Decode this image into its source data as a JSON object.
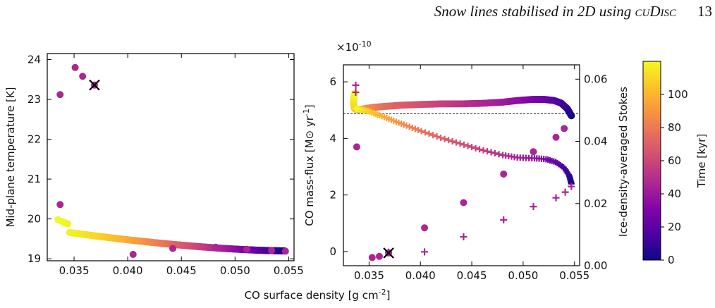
{
  "header": {
    "running_title": "Snow lines stabilised in 2D using cuDisc",
    "page_number": "13"
  },
  "shared_xlabel": "CO surface density [g cm^-2]",
  "colorbar": {
    "label": "Time [kyr]",
    "ticks": [
      0,
      20,
      40,
      60,
      80,
      100
    ],
    "range": [
      0,
      120
    ],
    "colormap": "plasma"
  },
  "chart_data": [
    {
      "type": "scatter",
      "panel": "left",
      "xlabel": "CO surface density [g cm^-2]",
      "ylabel": "Mid-plane temperature [K]",
      "xlim": [
        0.0325,
        0.0555
      ],
      "ylim": [
        18.95,
        24.15
      ],
      "xticks": [
        0.035,
        0.04,
        0.045,
        0.05,
        0.055
      ],
      "yticks": [
        19,
        20,
        21,
        22,
        23,
        24
      ],
      "grid": false,
      "series": [
        {
          "marker": "dot",
          "points": [
            {
              "x": 0.0337,
              "y": 23.12,
              "t": 46
            },
            {
              "x": 0.0351,
              "y": 23.8,
              "t": 46
            },
            {
              "x": 0.0358,
              "y": 23.58,
              "t": 46
            },
            {
              "x": 0.0337,
              "y": 20.36,
              "t": 46
            },
            {
              "x": 0.0405,
              "y": 19.11,
              "t": 46
            },
            {
              "x": 0.0442,
              "y": 19.26,
              "t": 46
            },
            {
              "x": 0.0482,
              "y": 19.29,
              "t": 46
            },
            {
              "x": 0.0511,
              "y": 19.24,
              "t": 46
            },
            {
              "x": 0.0534,
              "y": 19.21,
              "t": 46
            },
            {
              "x": 0.0547,
              "y": 19.19,
              "t": 46
            }
          ]
        },
        {
          "marker": "cross",
          "points": [
            {
              "x": 0.0369,
              "y": 23.36,
              "t": 46
            }
          ]
        },
        {
          "marker": "dot-track",
          "t_range": [
            0,
            120
          ],
          "x_start": 0.0335,
          "x_end": 0.0546,
          "y_start": 19.98,
          "y_end": 19.2
        }
      ]
    },
    {
      "type": "scatter",
      "panel": "right",
      "xlabel": "CO surface density [g cm^-2]",
      "ylabel": "CO mass-flux [M⊙ yr^-1]",
      "y2label": "Ice-density-averaged Stokes",
      "y_multiplier": "×10^-10",
      "xlim": [
        0.0325,
        0.0555
      ],
      "ylim": [
        -0.5,
        6.6
      ],
      "y2lim": [
        0.0,
        0.0646
      ],
      "xticks": [
        0.035,
        0.04,
        0.045,
        0.05,
        0.055
      ],
      "yticks": [
        0,
        2,
        4,
        6
      ],
      "y2ticks": [
        0.0,
        0.02,
        0.04,
        0.06
      ],
      "hline_y": 4.87,
      "grid": false,
      "series": [
        {
          "marker": "dot",
          "axis": "left",
          "points": [
            {
              "x": 0.0338,
              "y": 3.7,
              "t": 46
            },
            {
              "x": 0.0353,
              "y": -0.21,
              "t": 46
            },
            {
              "x": 0.036,
              "y": -0.17,
              "t": 46
            },
            {
              "x": 0.0404,
              "y": 0.84,
              "t": 46
            },
            {
              "x": 0.0442,
              "y": 1.73,
              "t": 46
            },
            {
              "x": 0.0481,
              "y": 2.74,
              "t": 46
            },
            {
              "x": 0.051,
              "y": 3.53,
              "t": 46
            },
            {
              "x": 0.0532,
              "y": 4.04,
              "t": 46
            },
            {
              "x": 0.054,
              "y": 4.35,
              "t": 46
            }
          ]
        },
        {
          "marker": "plus",
          "axis": "left",
          "points": [
            {
              "x": 0.0337,
              "y": 5.88,
              "t": 46
            },
            {
              "x": 0.0337,
              "y": 5.63,
              "t": 46
            },
            {
              "x": 0.0369,
              "y": -0.02,
              "t": 46
            },
            {
              "x": 0.0404,
              "y": -0.01,
              "t": 46
            },
            {
              "x": 0.0442,
              "y": 0.52,
              "t": 46
            },
            {
              "x": 0.0481,
              "y": 1.12,
              "t": 46
            },
            {
              "x": 0.051,
              "y": 1.59,
              "t": 46
            },
            {
              "x": 0.0532,
              "y": 1.9,
              "t": 46
            },
            {
              "x": 0.0541,
              "y": 2.1,
              "t": 46
            },
            {
              "x": 0.0547,
              "y": 2.3,
              "t": 46
            }
          ]
        },
        {
          "marker": "cross",
          "axis": "left",
          "points": [
            {
              "x": 0.0369,
              "y": -0.05,
              "t": 46
            }
          ]
        },
        {
          "marker": "dot-track",
          "axis": "left",
          "t_range": [
            0,
            120
          ],
          "path": [
            [
              0.0547,
              4.8
            ],
            [
              0.0543,
              5.05
            ],
            [
              0.0537,
              5.25
            ],
            [
              0.053,
              5.34
            ],
            [
              0.052,
              5.38
            ],
            [
              0.051,
              5.38
            ],
            [
              0.0495,
              5.34
            ],
            [
              0.048,
              5.28
            ],
            [
              0.046,
              5.24
            ],
            [
              0.044,
              5.22
            ],
            [
              0.042,
              5.22
            ],
            [
              0.04,
              5.2
            ],
            [
              0.038,
              5.17
            ],
            [
              0.0365,
              5.13
            ],
            [
              0.0355,
              5.1
            ],
            [
              0.0347,
              5.06
            ],
            [
              0.0343,
              5.03
            ],
            [
              0.0339,
              5.02
            ],
            [
              0.0336,
              5.05
            ],
            [
              0.0335,
              5.18
            ],
            [
              0.0335,
              5.38
            ],
            [
              0.0336,
              5.6
            ]
          ]
        },
        {
          "marker": "plus-track",
          "axis": "left",
          "t_range": [
            0,
            120
          ],
          "path": [
            [
              0.0547,
              2.4
            ],
            [
              0.0545,
              2.68
            ],
            [
              0.054,
              2.96
            ],
            [
              0.0532,
              3.16
            ],
            [
              0.0522,
              3.27
            ],
            [
              0.051,
              3.3
            ],
            [
              0.0495,
              3.32
            ],
            [
              0.048,
              3.41
            ],
            [
              0.046,
              3.59
            ],
            [
              0.044,
              3.8
            ],
            [
              0.042,
              4.02
            ],
            [
              0.04,
              4.27
            ],
            [
              0.0385,
              4.47
            ],
            [
              0.0372,
              4.65
            ],
            [
              0.036,
              4.82
            ],
            [
              0.035,
              4.95
            ],
            [
              0.0342,
              5.02
            ],
            [
              0.0337,
              5.05
            ]
          ]
        }
      ]
    }
  ]
}
